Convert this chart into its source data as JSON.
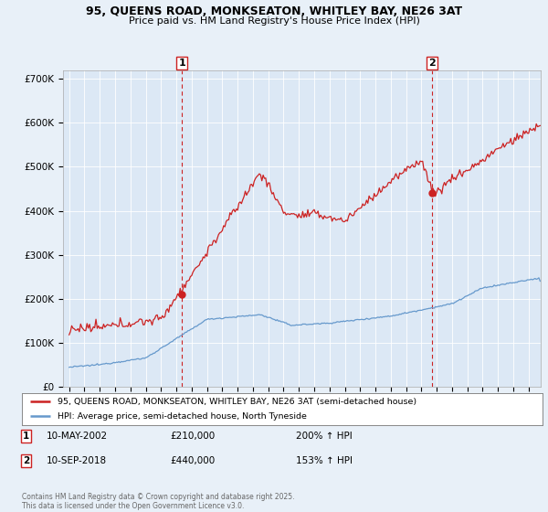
{
  "title_line1": "95, QUEENS ROAD, MONKSEATON, WHITLEY BAY, NE26 3AT",
  "title_line2": "Price paid vs. HM Land Registry's House Price Index (HPI)",
  "ylabel_ticks": [
    "£0",
    "£100K",
    "£200K",
    "£300K",
    "£400K",
    "£500K",
    "£600K",
    "£700K"
  ],
  "ytick_values": [
    0,
    100000,
    200000,
    300000,
    400000,
    500000,
    600000,
    700000
  ],
  "ylim": [
    0,
    720000
  ],
  "xlim_start": 1994.6,
  "xlim_end": 2025.8,
  "hpi_color": "#6699cc",
  "price_color": "#cc2222",
  "marker1_x": 2002.36,
  "marker1_y": 210000,
  "marker2_x": 2018.69,
  "marker2_y": 440000,
  "legend_label1": "95, QUEENS ROAD, MONKSEATON, WHITLEY BAY, NE26 3AT (semi-detached house)",
  "legend_label2": "HPI: Average price, semi-detached house, North Tyneside",
  "note1_num": "1",
  "note1_date": "10-MAY-2002",
  "note1_price": "£210,000",
  "note1_hpi": "200% ↑ HPI",
  "note2_num": "2",
  "note2_date": "10-SEP-2018",
  "note2_price": "£440,000",
  "note2_hpi": "153% ↑ HPI",
  "footer": "Contains HM Land Registry data © Crown copyright and database right 2025.\nThis data is licensed under the Open Government Licence v3.0.",
  "background_color": "#e8f0f8",
  "plot_bg_color": "#dce8f5",
  "grid_color": "#ffffff"
}
